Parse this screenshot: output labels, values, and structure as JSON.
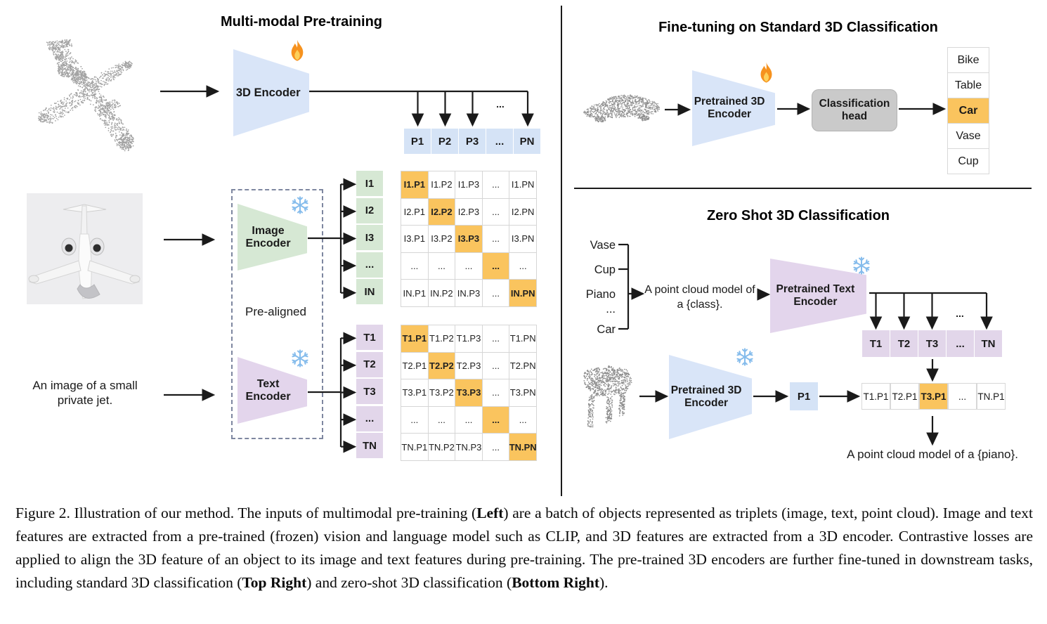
{
  "pretraining": {
    "title": "Multi-modal Pre-training",
    "encoder_3d_label": "3D Encoder",
    "encoder_3d_icon": "fire-icon",
    "image_encoder_label": "Image Encoder",
    "image_encoder_icon": "snowflake-icon",
    "text_encoder_label": "Text Encoder",
    "text_encoder_icon": "snowflake-icon",
    "pre_aligned_label": "Pre-aligned",
    "text_input": "An image of a small private jet.",
    "dots": "...",
    "p_row": [
      "P1",
      "P2",
      "P3",
      "...",
      "PN"
    ],
    "i_labels": [
      "I1",
      "I2",
      "I3",
      "...",
      "IN"
    ],
    "t_labels": [
      "T1",
      "T2",
      "T3",
      "...",
      "TN"
    ],
    "i_matrix": [
      [
        "I1.P1",
        "I1.P2",
        "I1.P3",
        "...",
        "I1.PN"
      ],
      [
        "I2.P1",
        "I2.P2",
        "I2.P3",
        "...",
        "I2.PN"
      ],
      [
        "I3.P1",
        "I3.P2",
        "I3.P3",
        "...",
        "I3.PN"
      ],
      [
        "...",
        "...",
        "...",
        "...",
        "..."
      ],
      [
        "IN.P1",
        "IN.P2",
        "IN.P3",
        "...",
        "IN.PN"
      ]
    ],
    "t_matrix": [
      [
        "T1.P1",
        "T1.P2",
        "T1.P3",
        "...",
        "T1.PN"
      ],
      [
        "T2.P1",
        "T2.P2",
        "T2.P3",
        "...",
        "T2.PN"
      ],
      [
        "T3.P1",
        "T3.P2",
        "T3.P3",
        "...",
        "T3.PN"
      ],
      [
        "...",
        "...",
        "...",
        "...",
        "..."
      ],
      [
        "TN.P1",
        "TN.P2",
        "TN.P3",
        "...",
        "TN.PN"
      ]
    ],
    "point_cloud_object": "airplane-point-cloud",
    "image_object": "private-jet-photo"
  },
  "finetune": {
    "title": "Fine-tuning on Standard 3D Classification",
    "encoder_label": "Pretrained 3D Encoder",
    "encoder_icon": "fire-icon",
    "head_label": "Classification head",
    "classes": [
      "Bike",
      "Table",
      "Car",
      "Vase",
      "Cup"
    ],
    "highlight_index": 2,
    "point_cloud_object": "car-point-cloud"
  },
  "zeroshot": {
    "title": "Zero Shot 3D Classification",
    "class_list": [
      "Vase",
      "Cup",
      "Piano",
      "...",
      "Car"
    ],
    "prompt_lines": [
      "A point cloud model of",
      "a {class}."
    ],
    "text_encoder_label": "Pretrained Text Encoder",
    "text_encoder_icon": "snowflake-icon",
    "encoder_3d_label": "Pretrained 3D Encoder",
    "encoder_3d_icon": "snowflake-icon",
    "p1_label": "P1",
    "dots": "...",
    "t_row": [
      "T1",
      "T2",
      "T3",
      "...",
      "TN"
    ],
    "result_row": [
      "T1.P1",
      "T2.P1",
      "T3.P1",
      "...",
      "TN.P1"
    ],
    "result_highlight_index": 2,
    "result_text": "A point cloud model of a {piano}.",
    "point_cloud_object": "piano-point-cloud"
  },
  "caption": {
    "segments": [
      {
        "text": "Figure 2. Illustration of our method. The inputs of multimodal pre-training (",
        "bold": false
      },
      {
        "text": "Left",
        "bold": true
      },
      {
        "text": ") are a batch of objects represented as triplets (image, text, point cloud). Image and text features are extracted from a pre-trained (frozen) vision and language model such as CLIP, and 3D features are extracted from a 3D encoder. Contrastive losses are applied to align the 3D feature of an object to its image and text features during pre-training. The pre-trained 3D encoders are further fine-tuned in downstream tasks, including standard 3D classification (",
        "bold": false
      },
      {
        "text": "Top Right",
        "bold": true
      },
      {
        "text": ") and zero-shot 3D classification (",
        "bold": false
      },
      {
        "text": "Bottom Right",
        "bold": true
      },
      {
        "text": ").",
        "bold": false
      }
    ]
  },
  "colors": {
    "blue_fill": "#d9e5f8",
    "blue_cell": "#d5e3f6",
    "green_fill": "#d6e8d4",
    "purple_fill": "#e3d5ec",
    "purple_cell": "#e2d6ea",
    "orange_highlight": "#fac45e",
    "gray_box": "#cacaca",
    "line_black": "#1a1a1a",
    "dot_gray": "#a2a2a2"
  }
}
